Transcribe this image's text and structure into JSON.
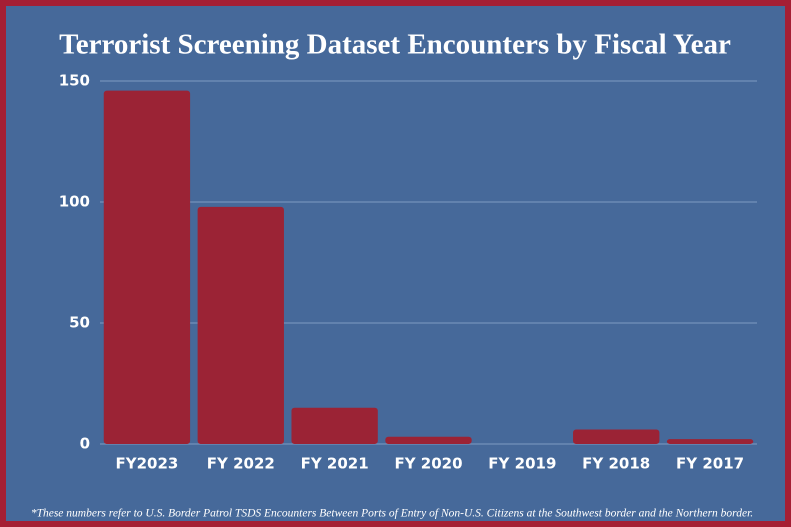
{
  "chart_data": {
    "type": "bar",
    "title": "Terrorist Screening Dataset Encounters by Fiscal Year",
    "categories": [
      "FY2023",
      "FY 2022",
      "FY 2021",
      "FY 2020",
      "FY 2019",
      "FY 2018",
      "FY 2017"
    ],
    "values": [
      146,
      98,
      15,
      3,
      0,
      6,
      2
    ],
    "color": "#9b2335",
    "ylim": [
      0,
      150
    ],
    "yticks": [
      0,
      50,
      100,
      150
    ],
    "grid": true,
    "footnote": "*These numbers refer to U.S. Border Patrol TSDS Encounters Between Ports of Entry of Non-U.S. Citizens at the Southwest border and the Northern  border."
  }
}
